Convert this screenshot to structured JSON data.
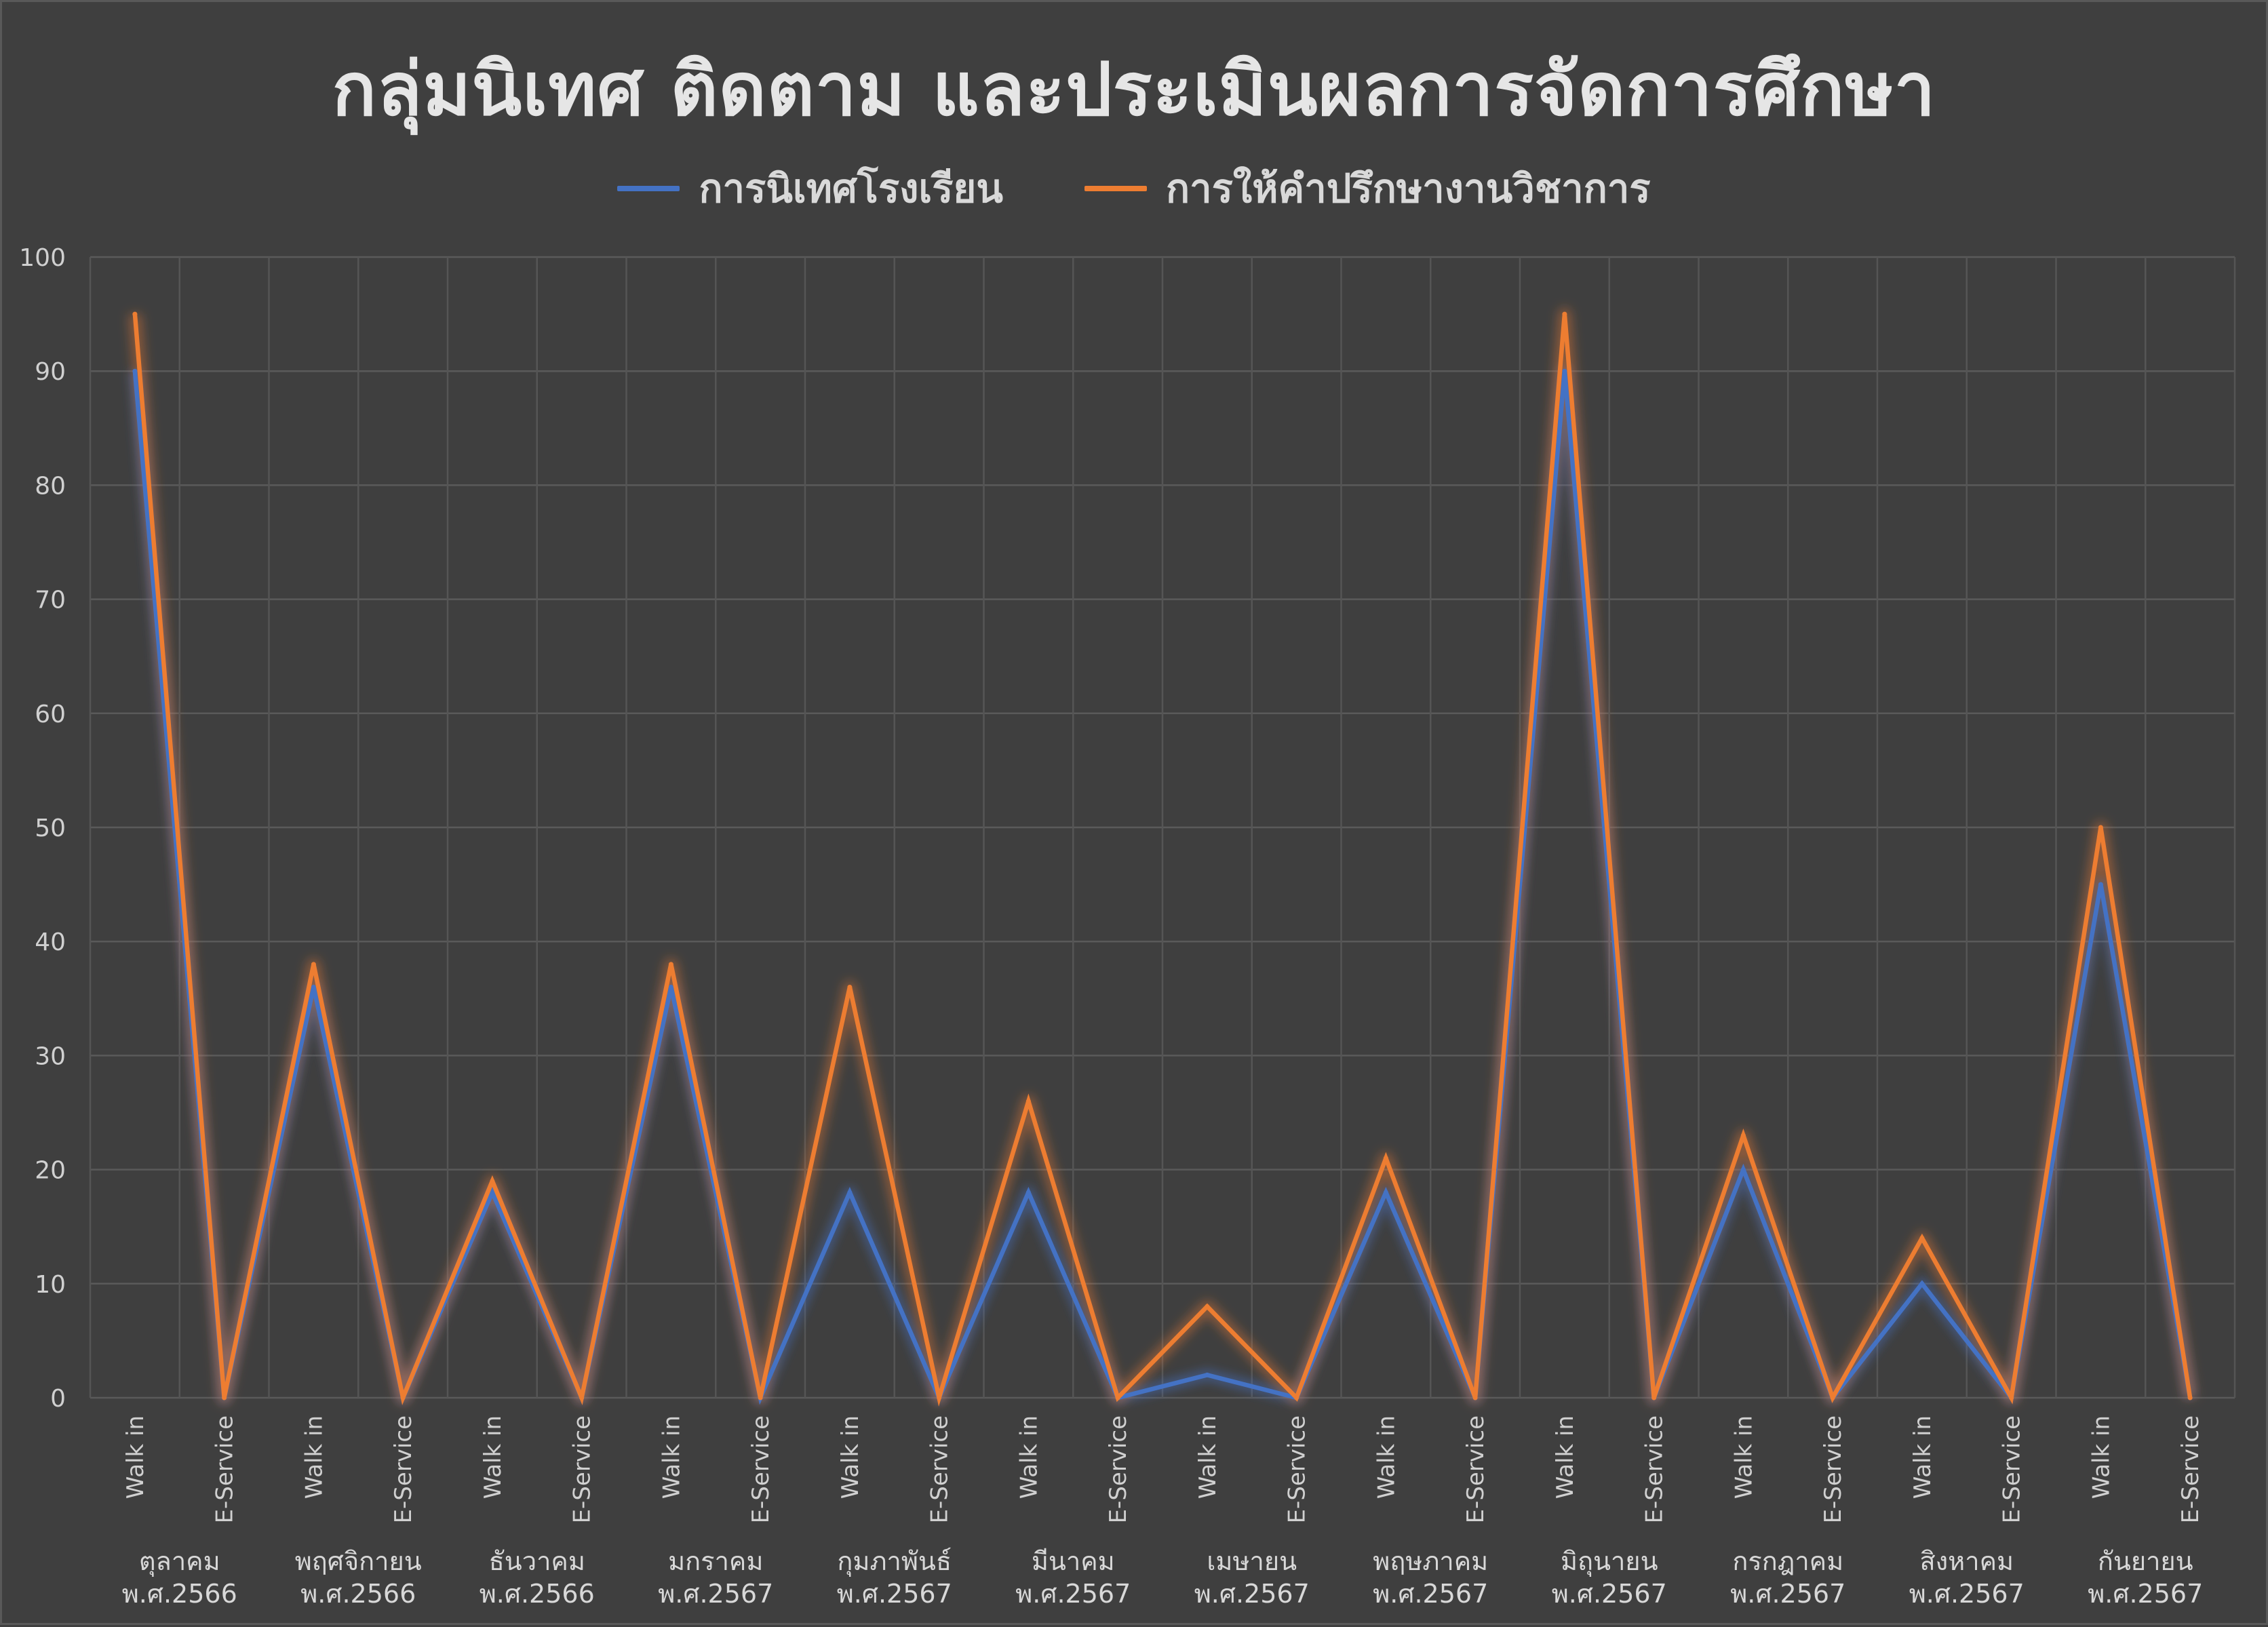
{
  "chart_data": {
    "type": "line",
    "title": "กลุ่มนิเทศ ติดตาม และประเมินผลการจัดการศึกษา",
    "legend_position": "top",
    "grid": true,
    "ylim": [
      0,
      100
    ],
    "y_ticks": [
      "0",
      "10",
      "20",
      "30",
      "40",
      "50",
      "60",
      "70",
      "80",
      "90",
      "100"
    ],
    "groups": [
      {
        "line1": "ตุลาคม",
        "line2": "พ.ศ.2566"
      },
      {
        "line1": "พฤศจิกายน",
        "line2": "พ.ศ.2566"
      },
      {
        "line1": "ธันวาคม",
        "line2": "พ.ศ.2566"
      },
      {
        "line1": "มกราคม",
        "line2": "พ.ศ.2567"
      },
      {
        "line1": "กุมภาพันธ์",
        "line2": "พ.ศ.2567"
      },
      {
        "line1": "มีนาคม",
        "line2": "พ.ศ.2567"
      },
      {
        "line1": "เมษายน",
        "line2": "พ.ศ.2567"
      },
      {
        "line1": "พฤษภาคม",
        "line2": "พ.ศ.2567"
      },
      {
        "line1": "มิถุนายน",
        "line2": "พ.ศ.2567"
      },
      {
        "line1": "กรกฎาคม",
        "line2": "พ.ศ.2567"
      },
      {
        "line1": "สิงหาคม",
        "line2": "พ.ศ.2567"
      },
      {
        "line1": "กันยายน",
        "line2": "พ.ศ.2567"
      }
    ],
    "subcategories": [
      "Walk in",
      "E-Service"
    ],
    "series": [
      {
        "name": "การนิเทศโรงเรียน",
        "color": "#4472c4",
        "values": [
          90,
          0,
          36,
          0,
          18,
          0,
          36,
          0,
          18,
          0,
          18,
          0,
          2,
          0,
          18,
          0,
          90,
          0,
          20,
          0,
          10,
          0,
          45,
          0
        ]
      },
      {
        "name": "การให้คำปรึกษางานวิชาการ",
        "color": "#ed7d31",
        "values": [
          95,
          0,
          38,
          0,
          19,
          0,
          38,
          0,
          36,
          0,
          26,
          0,
          8,
          0,
          21,
          0,
          95,
          0,
          23,
          0,
          14,
          0,
          50,
          0
        ]
      }
    ]
  }
}
